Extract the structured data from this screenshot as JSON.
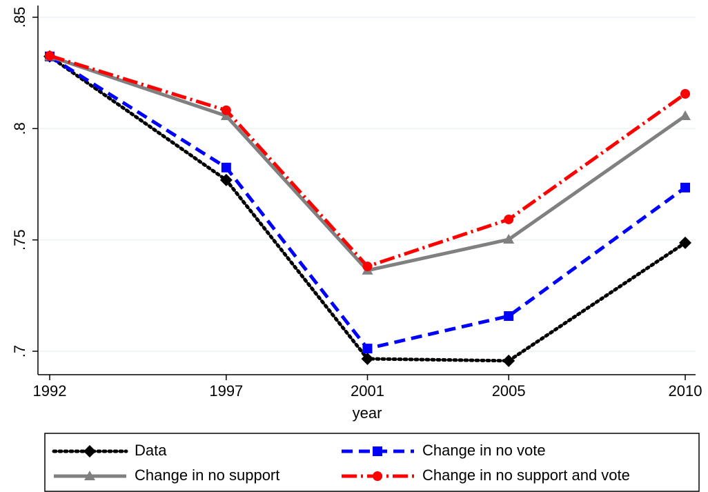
{
  "chart_data": {
    "type": "line",
    "x_label": "year",
    "x": [
      1992,
      1997,
      2001,
      2005,
      2010
    ],
    "xlim": [
      1992,
      2010
    ],
    "xticks": [
      1992,
      1997,
      2001,
      2005,
      2010
    ],
    "ylim": [
      0.7,
      0.85
    ],
    "yticks": [
      {
        "value": 0.7,
        "label": ".7"
      },
      {
        "value": 0.75,
        "label": ".75"
      },
      {
        "value": 0.8,
        "label": ".8"
      },
      {
        "value": 0.85,
        "label": ".85"
      }
    ],
    "grid": true,
    "legend": "bottom",
    "series": [
      {
        "name": "Data",
        "color": "#000000",
        "marker": "diamond",
        "dash": "dot",
        "values": [
          0.8324,
          0.7769,
          0.6966,
          0.6957,
          0.7487
        ]
      },
      {
        "name": "Change in no vote",
        "color": "#0000ff",
        "marker": "square",
        "dash": "dash",
        "values": [
          0.8324,
          0.7825,
          0.7012,
          0.7158,
          0.7735
        ]
      },
      {
        "name": "Change in no support",
        "color": "#808080",
        "marker": "triangle",
        "dash": "solid",
        "values": [
          0.8324,
          0.8057,
          0.7363,
          0.7502,
          0.8057
        ]
      },
      {
        "name": "Change in no support and vote",
        "color": "#ff0000",
        "marker": "circle",
        "dash": "dashdot",
        "values": [
          0.8327,
          0.8082,
          0.7381,
          0.7592,
          0.8156
        ]
      }
    ]
  }
}
